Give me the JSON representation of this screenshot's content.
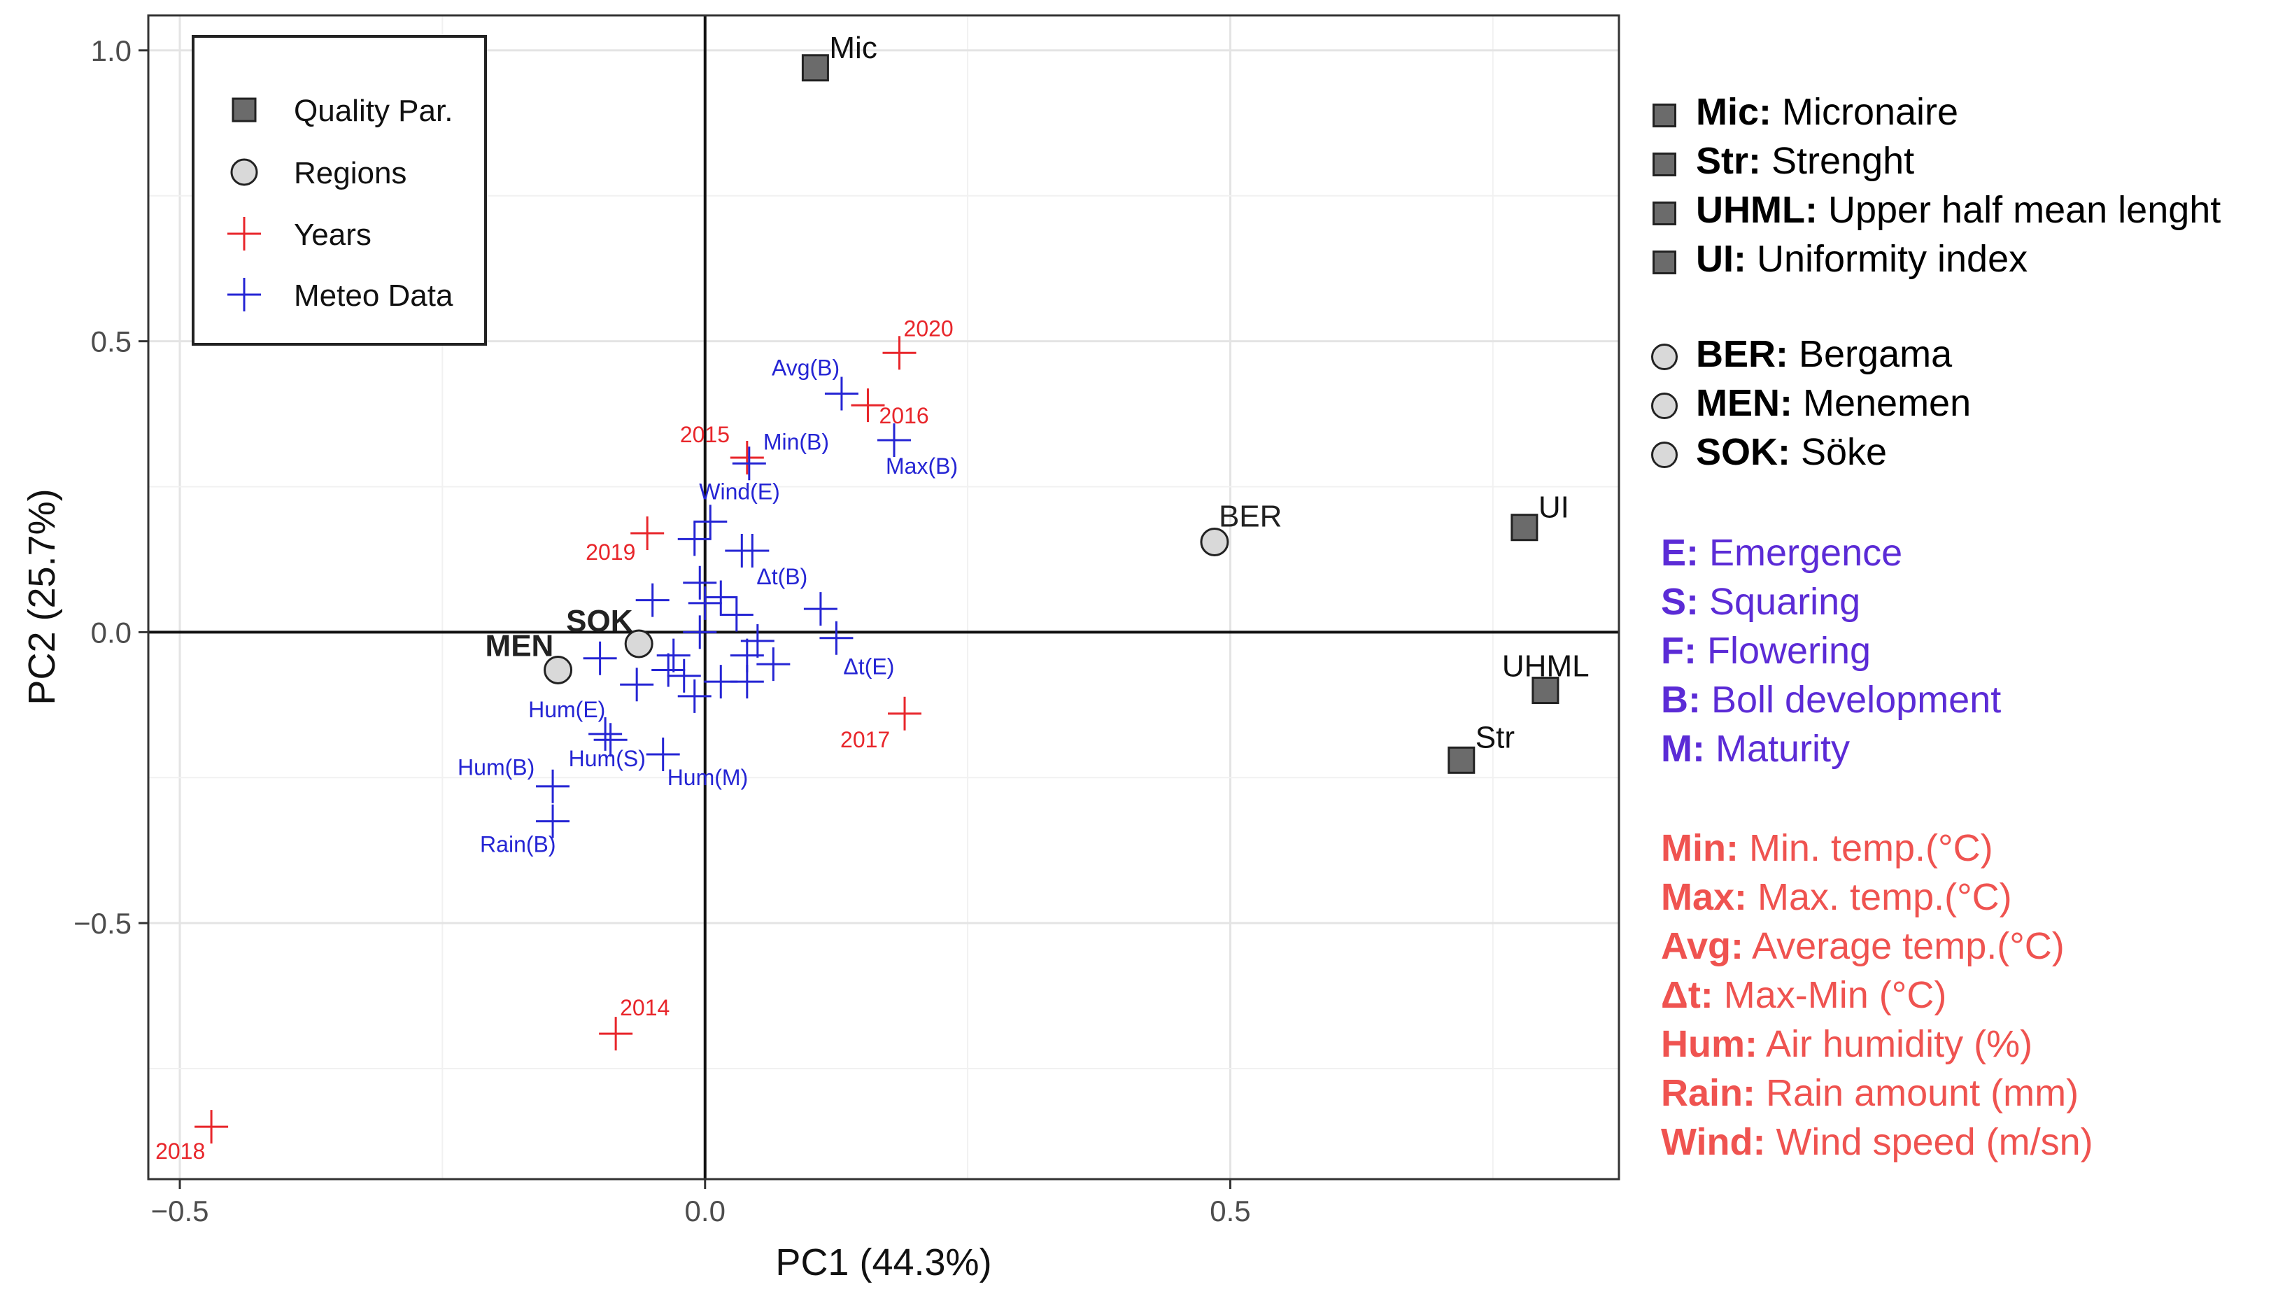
{
  "chart_data": {
    "type": "scatter",
    "xlabel": "PC1  (44.3%)",
    "ylabel": "PC2 (25.7%)",
    "xlim": [
      -0.53,
      0.87
    ],
    "ylim": [
      -0.94,
      1.06
    ],
    "xticks": [
      -0.5,
      0.0,
      0.5
    ],
    "yticks": [
      -0.5,
      0.0,
      0.5,
      1.0
    ],
    "xtick_labels": [
      "−0.5",
      "0.0",
      "0.5"
    ],
    "ytick_labels": [
      "−0.5",
      "0.0",
      "0.5",
      "1.0"
    ],
    "grid": true,
    "reference_lines": [
      0,
      0
    ],
    "colors": {
      "quality": "#6b6b6b",
      "regions": "#d9d9d9",
      "years": "#e8262b",
      "meteo": "#2525d4"
    },
    "legend": {
      "position": "top-left",
      "entries": [
        {
          "label": "Quality Par.",
          "shape": "square"
        },
        {
          "label": "Regions",
          "shape": "circle"
        },
        {
          "label": "Years",
          "shape": "plus-red"
        },
        {
          "label": "Meteo Data",
          "shape": "plus-blue"
        }
      ]
    },
    "series": [
      {
        "name": "Quality Par.",
        "marker": "square",
        "points": [
          {
            "label": "Mic",
            "x": 0.105,
            "y": 0.97
          },
          {
            "label": "UI",
            "x": 0.78,
            "y": 0.18
          },
          {
            "label": "UHML",
            "x": 0.8,
            "y": -0.1
          },
          {
            "label": "Str",
            "x": 0.72,
            "y": -0.22
          }
        ]
      },
      {
        "name": "Regions",
        "marker": "circle",
        "points": [
          {
            "label": "BER",
            "x": 0.485,
            "y": 0.155
          },
          {
            "label": "SOK",
            "x": -0.063,
            "y": -0.02
          },
          {
            "label": "MEN",
            "x": -0.14,
            "y": -0.065
          }
        ]
      },
      {
        "name": "Years",
        "marker": "plus",
        "points": [
          {
            "label": "2020",
            "x": 0.185,
            "y": 0.48
          },
          {
            "label": "2016",
            "x": 0.155,
            "y": 0.39
          },
          {
            "label": "2015",
            "x": 0.04,
            "y": 0.3
          },
          {
            "label": "2019",
            "x": -0.055,
            "y": 0.17
          },
          {
            "label": "2017",
            "x": 0.19,
            "y": -0.14
          },
          {
            "label": "2014",
            "x": -0.085,
            "y": -0.69
          },
          {
            "label": "2018",
            "x": -0.47,
            "y": -0.85
          }
        ]
      },
      {
        "name": "Meteo Data",
        "marker": "plus",
        "points": [
          {
            "label": "Avg(B)",
            "x": 0.13,
            "y": 0.41
          },
          {
            "label": "Max(B)",
            "x": 0.18,
            "y": 0.33
          },
          {
            "label": "Min(B)",
            "x": 0.042,
            "y": 0.29
          },
          {
            "label": "Wind(E)",
            "x": 0.005,
            "y": 0.19
          },
          {
            "label": "Δt(B)",
            "x": 0.045,
            "y": 0.14
          },
          {
            "label": "Δt(E)",
            "x": 0.125,
            "y": -0.01
          },
          {
            "label": "Hum(E)",
            "x": -0.095,
            "y": -0.175
          },
          {
            "label": "Hum(S)",
            "x": -0.09,
            "y": -0.185
          },
          {
            "label": "Hum(M)",
            "x": -0.04,
            "y": -0.21
          },
          {
            "label": "Hum(B)",
            "x": -0.145,
            "y": -0.265
          },
          {
            "label": "Rain(B)",
            "x": -0.145,
            "y": -0.325
          },
          {
            "label": "",
            "x": -0.01,
            "y": 0.16
          },
          {
            "label": "",
            "x": 0.035,
            "y": 0.14
          },
          {
            "label": "",
            "x": -0.05,
            "y": 0.055
          },
          {
            "label": "",
            "x": -0.005,
            "y": 0.085
          },
          {
            "label": "",
            "x": 0.0,
            "y": 0.05
          },
          {
            "label": "",
            "x": 0.015,
            "y": 0.06
          },
          {
            "label": "",
            "x": 0.03,
            "y": 0.03
          },
          {
            "label": "",
            "x": 0.11,
            "y": 0.04
          },
          {
            "label": "",
            "x": -0.005,
            "y": 0.0
          },
          {
            "label": "",
            "x": -0.03,
            "y": -0.04
          },
          {
            "label": "",
            "x": 0.05,
            "y": -0.015
          },
          {
            "label": "",
            "x": 0.04,
            "y": -0.04
          },
          {
            "label": "",
            "x": 0.065,
            "y": -0.055
          },
          {
            "label": "",
            "x": -0.1,
            "y": -0.045
          },
          {
            "label": "",
            "x": -0.035,
            "y": -0.065
          },
          {
            "label": "",
            "x": -0.02,
            "y": -0.075
          },
          {
            "label": "",
            "x": -0.065,
            "y": -0.09
          },
          {
            "label": "",
            "x": 0.015,
            "y": -0.085
          },
          {
            "label": "",
            "x": 0.04,
            "y": -0.085
          },
          {
            "label": "",
            "x": -0.01,
            "y": -0.11
          }
        ]
      }
    ]
  },
  "keys": {
    "quality": [
      {
        "abbr": "Mic:",
        "desc": " Micronaire"
      },
      {
        "abbr": "Str:",
        "desc": " Strenght"
      },
      {
        "abbr": "UHML:",
        "desc": " Upper half mean lenght"
      },
      {
        "abbr": "UI:",
        "desc": " Uniformity index"
      }
    ],
    "regions": [
      {
        "abbr": "BER:",
        "desc": " Bergama"
      },
      {
        "abbr": "MEN:",
        "desc": " Menemen"
      },
      {
        "abbr": "SOK:",
        "desc": " Söke"
      }
    ],
    "stages": [
      {
        "abbr": "E:",
        "desc": " Emergence"
      },
      {
        "abbr": "S:",
        "desc": " Squaring"
      },
      {
        "abbr": "F:",
        "desc": " Flowering"
      },
      {
        "abbr": "B:",
        "desc": " Boll development"
      },
      {
        "abbr": "M:",
        "desc": " Maturity"
      }
    ],
    "meteo": [
      {
        "abbr": "Min:",
        "desc": " Min. temp.(°C)"
      },
      {
        "abbr": "Max:",
        "desc": " Max. temp.(°C)"
      },
      {
        "abbr": "Avg:",
        "desc": " Average temp.(°C)"
      },
      {
        "abbr": "Δt:",
        "desc": " Max-Min (°C)"
      },
      {
        "abbr": "Hum:",
        "desc": " Air humidity (%)"
      },
      {
        "abbr": "Rain:",
        "desc": " Rain amount (mm)"
      },
      {
        "abbr": "Wind:",
        "desc": " Wind speed (m/sn)"
      }
    ]
  }
}
